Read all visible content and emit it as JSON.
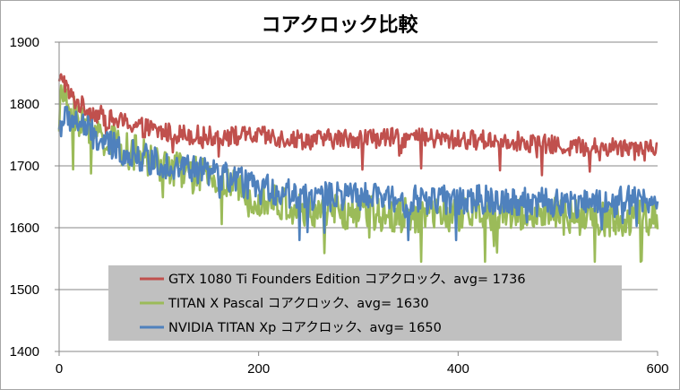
{
  "chart_data": {
    "type": "line",
    "title": "コアクロック比較",
    "xlabel": "",
    "ylabel": "",
    "xlim": [
      0,
      600
    ],
    "ylim": [
      1400,
      1900
    ],
    "x_ticks": [
      0,
      200,
      400,
      600
    ],
    "y_ticks": [
      1400,
      1500,
      1600,
      1700,
      1800,
      1900
    ],
    "grid": true,
    "legend_position": "bottom-center",
    "series": [
      {
        "name": "GTX 1080 Ti Founders Edition コアクロック、avg= 1736",
        "color": "#c0504d",
        "anchors": [
          [
            0,
            1830
          ],
          [
            3,
            1848
          ],
          [
            10,
            1815
          ],
          [
            20,
            1800
          ],
          [
            30,
            1790
          ],
          [
            50,
            1775
          ],
          [
            80,
            1765
          ],
          [
            100,
            1755
          ],
          [
            150,
            1748
          ],
          [
            200,
            1748
          ],
          [
            250,
            1742
          ],
          [
            300,
            1745
          ],
          [
            350,
            1745
          ],
          [
            400,
            1742
          ],
          [
            450,
            1742
          ],
          [
            500,
            1732
          ],
          [
            550,
            1730
          ],
          [
            600,
            1733
          ]
        ],
        "min": 1685,
        "max": 1848,
        "noise": 16
      },
      {
        "name": "TITAN X Pascal コアクロック、avg= 1630",
        "color": "#9bbb59",
        "anchors": [
          [
            0,
            1780
          ],
          [
            3,
            1822
          ],
          [
            10,
            1790
          ],
          [
            30,
            1760
          ],
          [
            60,
            1730
          ],
          [
            100,
            1705
          ],
          [
            150,
            1680
          ],
          [
            200,
            1650
          ],
          [
            250,
            1625
          ],
          [
            300,
            1625
          ],
          [
            350,
            1620
          ],
          [
            400,
            1620
          ],
          [
            450,
            1625
          ],
          [
            500,
            1618
          ],
          [
            550,
            1615
          ],
          [
            600,
            1615
          ]
        ],
        "min": 1545,
        "max": 1830,
        "noise": 30
      },
      {
        "name": "NVIDIA TITAN Xp コアクロック、avg= 1650",
        "color": "#4f81bd",
        "anchors": [
          [
            0,
            1760
          ],
          [
            5,
            1780
          ],
          [
            20,
            1770
          ],
          [
            40,
            1740
          ],
          [
            70,
            1720
          ],
          [
            100,
            1705
          ],
          [
            150,
            1690
          ],
          [
            200,
            1665
          ],
          [
            250,
            1650
          ],
          [
            300,
            1650
          ],
          [
            350,
            1645
          ],
          [
            400,
            1645
          ],
          [
            450,
            1645
          ],
          [
            500,
            1640
          ],
          [
            550,
            1640
          ],
          [
            600,
            1650
          ]
        ],
        "min": 1580,
        "max": 1795,
        "noise": 24
      }
    ]
  }
}
